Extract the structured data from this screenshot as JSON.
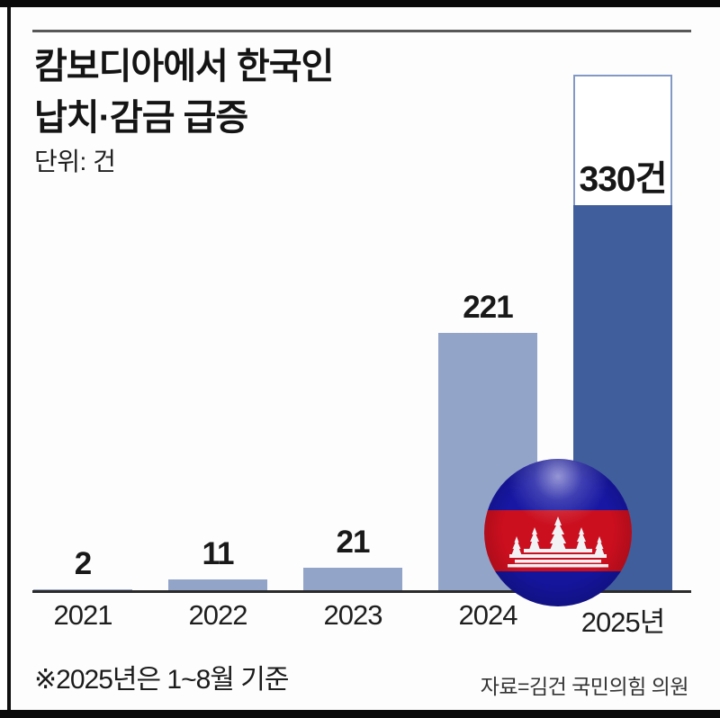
{
  "header": {
    "title_line1": "캄보디아에서 한국인",
    "title_line2": "납치·감금 급증",
    "unit_label": "단위: 건"
  },
  "chart_data": {
    "type": "bar",
    "title": "캄보디아에서 한국인 납치·감금 급증",
    "unit": "건",
    "categories": [
      "2021",
      "2022",
      "2023",
      "2024",
      "2025년"
    ],
    "values": [
      2,
      11,
      21,
      221,
      330
    ],
    "value_labels": [
      "2",
      "11",
      "21",
      "221",
      "330건"
    ],
    "bar_styles": [
      "light",
      "light",
      "light",
      "light",
      "dark"
    ],
    "highlight_category": "2025년",
    "projection": {
      "category": "2025년",
      "style": "white outlined box above filled bar (partial-year figure)",
      "label_inside": "330건"
    },
    "ylim": [
      0,
      440
    ],
    "xlabel": "",
    "ylabel": "건",
    "grid": false,
    "legend": false,
    "colors": {
      "bar_light": "#93a4c9",
      "bar_dark": "#415e9c",
      "projection_border": "#8299c6",
      "projection_fill": "#ffffff",
      "axis_line": "#2b2b2b"
    }
  },
  "footer": {
    "note": "※2025년은 1~8월 기준",
    "source": "자료=김건 국민의힘 의원"
  },
  "decor": {
    "flag_ball": "cambodia-flag-ball",
    "flag_colors": {
      "blue": "#1717a3",
      "red": "#cb0f1f",
      "temple": "#f2f2f5"
    }
  }
}
